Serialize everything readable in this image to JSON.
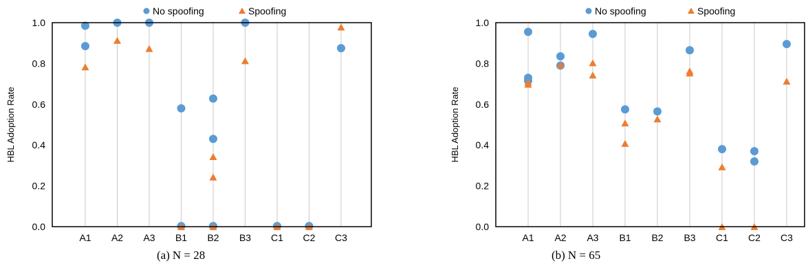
{
  "colors": {
    "no_spoofing": "#5b9bd5",
    "spoofing": "#ed7d31",
    "grid": "#c8c8c8",
    "frame": "#000000"
  },
  "chart_data": [
    {
      "type": "scatter",
      "caption_label": "(a)",
      "caption_text": "N = 28",
      "ylabel": "HBL Adoption Rate",
      "xlabel": "",
      "categories": [
        "A1",
        "A2",
        "A3",
        "B1",
        "B2",
        "B3",
        "C1",
        "C2",
        "C3"
      ],
      "ylim": [
        0,
        1.0
      ],
      "yticks": [
        "0.0",
        "0.2",
        "0.4",
        "0.6",
        "0.8",
        "1.0"
      ],
      "grid": "vertical",
      "legend": "top",
      "series": [
        {
          "name": "No spoofing",
          "marker": "circle",
          "points": [
            [
              "A1",
              0.985
            ],
            [
              "A1",
              0.885
            ],
            [
              "A2",
              1.0
            ],
            [
              "A3",
              1.0
            ],
            [
              "B1",
              0.58
            ],
            [
              "B1",
              0.003
            ],
            [
              "B2",
              0.628
            ],
            [
              "B2",
              0.43
            ],
            [
              "B2",
              0.003
            ],
            [
              "B3",
              1.0
            ],
            [
              "C1",
              0.003
            ],
            [
              "C2",
              0.003
            ],
            [
              "C3",
              0.875
            ]
          ]
        },
        {
          "name": "Spoofing",
          "marker": "triangle",
          "points": [
            [
              "A1",
              0.78
            ],
            [
              "A2",
              0.91
            ],
            [
              "A3",
              0.87
            ],
            [
              "B1",
              -0.003
            ],
            [
              "B2",
              0.34
            ],
            [
              "B2",
              0.24
            ],
            [
              "B2",
              -0.003
            ],
            [
              "B3",
              0.81
            ],
            [
              "C1",
              -0.003
            ],
            [
              "C2",
              -0.003
            ],
            [
              "C3",
              0.975
            ]
          ]
        }
      ]
    },
    {
      "type": "scatter",
      "caption_label": "(b)",
      "caption_text": "N = 65",
      "ylabel": "HBL Adoption Rate",
      "xlabel": "",
      "categories": [
        "A1",
        "A2",
        "A3",
        "B1",
        "B2",
        "B3",
        "C1",
        "C2",
        "C3"
      ],
      "ylim": [
        0,
        1.0
      ],
      "yticks": [
        "0.0",
        "0.2",
        "0.4",
        "0.6",
        "0.8",
        "1.0"
      ],
      "grid": "vertical",
      "legend": "top",
      "series": [
        {
          "name": "No spoofing",
          "marker": "circle",
          "points": [
            [
              "A1",
              0.955
            ],
            [
              "A1",
              0.73
            ],
            [
              "A1",
              0.715
            ],
            [
              "A2",
              0.835
            ],
            [
              "A2",
              0.79
            ],
            [
              "A3",
              0.945
            ],
            [
              "B1",
              0.575
            ],
            [
              "B2",
              0.565
            ],
            [
              "B3",
              0.865
            ],
            [
              "C1",
              0.38
            ],
            [
              "C2",
              0.37
            ],
            [
              "C2",
              0.32
            ],
            [
              "C3",
              0.895
            ]
          ]
        },
        {
          "name": "Spoofing",
          "marker": "triangle",
          "points": [
            [
              "A1",
              0.705
            ],
            [
              "A1",
              0.695
            ],
            [
              "A2",
              0.79
            ],
            [
              "A3",
              0.8
            ],
            [
              "A3",
              0.74
            ],
            [
              "B1",
              0.505
            ],
            [
              "B1",
              0.405
            ],
            [
              "B2",
              0.525
            ],
            [
              "B3",
              0.76
            ],
            [
              "B3",
              0.75
            ],
            [
              "C1",
              0.29
            ],
            [
              "C1",
              -0.003
            ],
            [
              "C2",
              -0.003
            ],
            [
              "C3",
              0.71
            ]
          ]
        }
      ]
    }
  ]
}
